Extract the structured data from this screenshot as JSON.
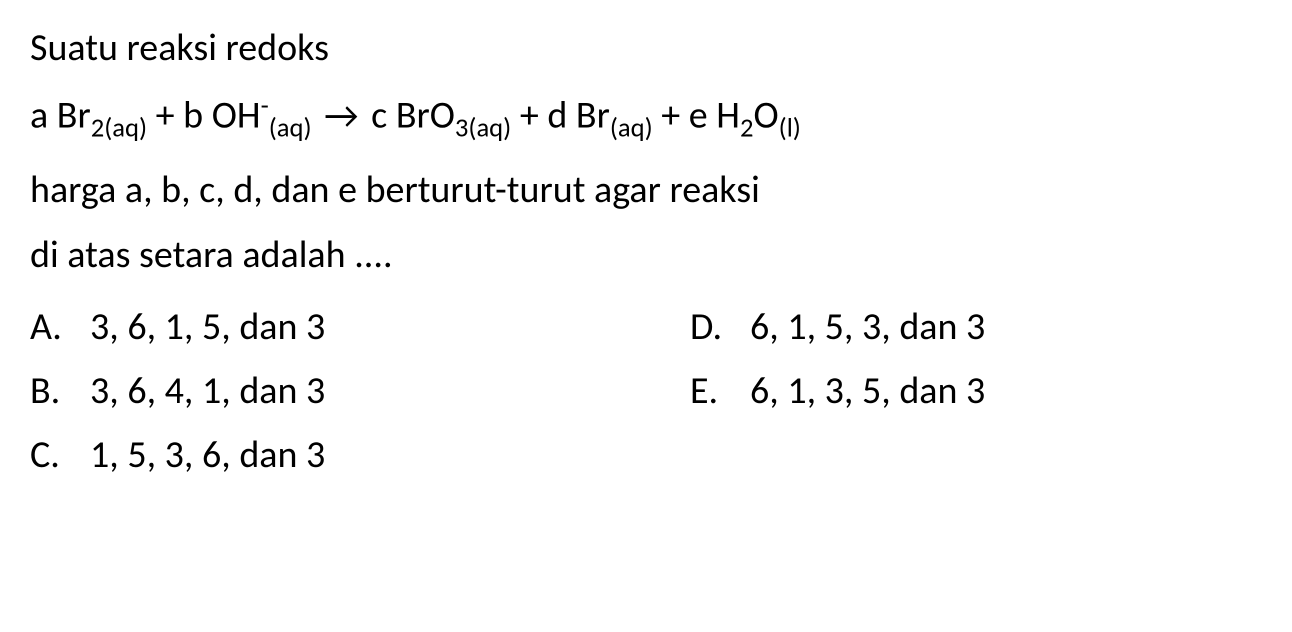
{
  "title": "Suatu reaksi redoks",
  "question_part1": "harga a, b, c, d, dan e berturut-turut agar reaksi",
  "question_part2": "di atas setara adalah ....",
  "equation": {
    "a": "a",
    "b": "b",
    "c": "c",
    "d": "d",
    "e": "e"
  },
  "options": {
    "A": {
      "label": "A.",
      "text": "3, 6, 1, 5, dan 3"
    },
    "B": {
      "label": "B.",
      "text": "3, 6, 4, 1, dan 3"
    },
    "C": {
      "label": "C.",
      "text": "1, 5, 3, 6, dan 3"
    },
    "D": {
      "label": "D.",
      "text": "6, 1, 5, 3, dan 3"
    },
    "E": {
      "label": "E.",
      "text": "6, 1, 3, 5, dan 3"
    }
  }
}
